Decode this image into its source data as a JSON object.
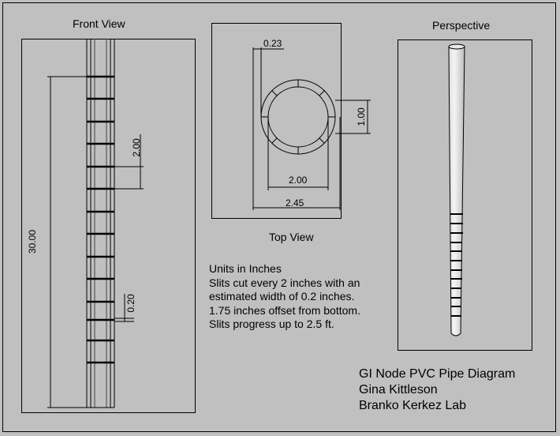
{
  "views": {
    "front": "Front View",
    "top": "Top View",
    "perspective": "Perspective"
  },
  "dimensions": {
    "slit_spacing": "2.00",
    "overall_length": "30.00",
    "slit_width": "0.20",
    "wall_thickness": "0.23",
    "inner_diameter": "2.00",
    "outer_diameter": "2.45",
    "slit_opening": "1.00"
  },
  "notes": [
    "Units in Inches",
    "Slits cut every 2 inches with an",
    "estimated width of 0.2 inches.",
    "1.75 inches offset from bottom.",
    "Slits progress up to 2.5 ft."
  ],
  "title_block": [
    "GI Node PVC Pipe Diagram",
    "Gina Kittleson",
    "Branko Kerkez Lab"
  ]
}
